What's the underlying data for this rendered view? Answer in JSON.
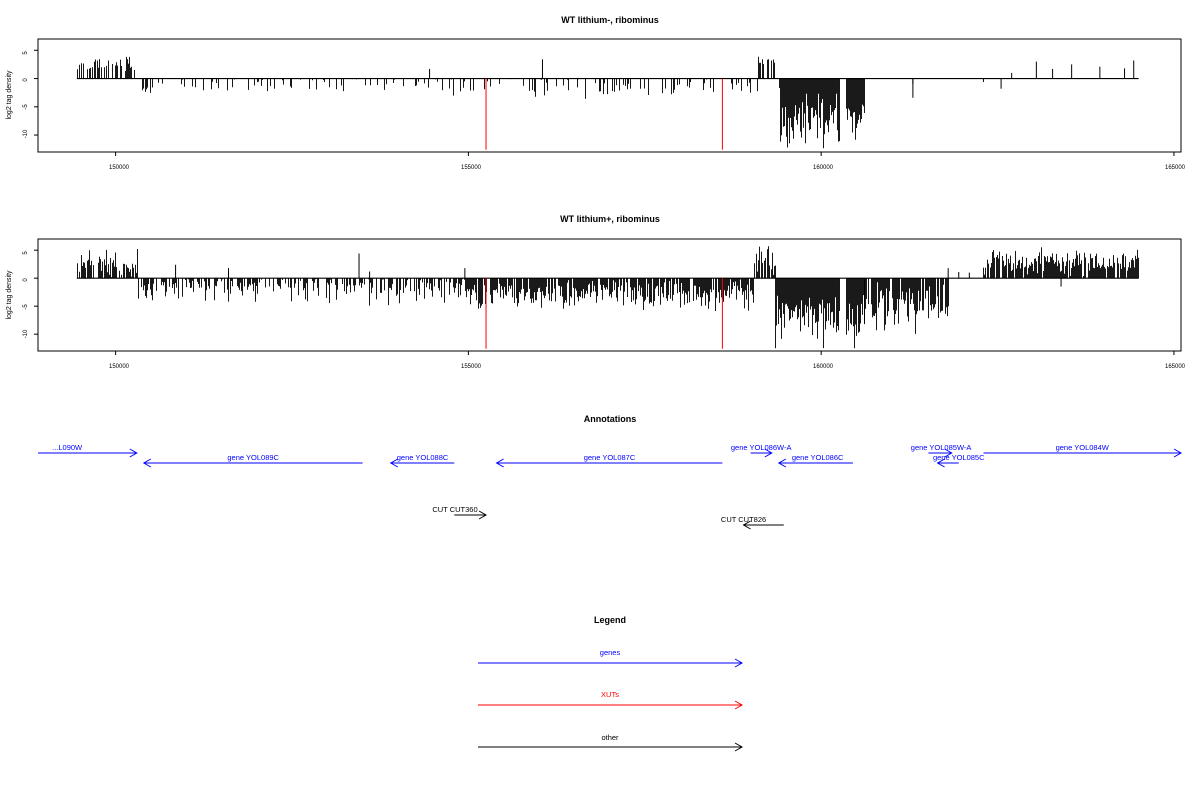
{
  "colors": {
    "genes": "#0000ff",
    "xuts": "#ff0000",
    "other": "#000000",
    "bars": "#000000"
  },
  "chart_data": [
    {
      "type": "bar",
      "title": "WT lithium-, ribominus",
      "ylabel": "log2 tag density",
      "xlim": [
        148900,
        165100
      ],
      "ylim": [
        -13,
        7
      ],
      "xticks": [
        "150000",
        "155000",
        "160000",
        "165000"
      ],
      "yticks": [
        "5",
        "0",
        "-5",
        "-10"
      ],
      "data_range": [
        149450,
        164500
      ],
      "xut_markers": [
        {
          "x": 155250,
          "value": -12.6
        },
        {
          "x": 158600,
          "value": -12.6
        }
      ],
      "density_regions": [
        {
          "from": 149450,
          "to": 150300,
          "mean": 2.2,
          "spread": 0.9,
          "density": 0.55
        },
        {
          "from": 150300,
          "to": 159100,
          "mean": -1.2,
          "spread": 1.0,
          "density": 0.25
        },
        {
          "from": 159100,
          "to": 159350,
          "mean": 3.0,
          "spread": 0.9,
          "density": 0.6
        },
        {
          "from": 159400,
          "to": 160250,
          "mean": -7.5,
          "spread": 2.5,
          "density": 1.0
        },
        {
          "from": 160350,
          "to": 160600,
          "mean": -7.5,
          "spread": 2.2,
          "density": 1.0
        },
        {
          "from": 160600,
          "to": 164500,
          "mean": 0.0,
          "spread": 0.0,
          "density": 0.0
        }
      ],
      "spikes": [
        {
          "x": 154450,
          "value": 1.7
        },
        {
          "x": 156050,
          "value": 3.4
        },
        {
          "x": 162700,
          "value": 1.0
        },
        {
          "x": 162550,
          "value": -1.8
        },
        {
          "x": 162300,
          "value": -0.6
        },
        {
          "x": 163050,
          "value": 3.0
        },
        {
          "x": 163280,
          "value": 1.7
        },
        {
          "x": 163550,
          "value": 2.5
        },
        {
          "x": 163950,
          "value": 2.1
        },
        {
          "x": 164300,
          "value": 1.8
        },
        {
          "x": 164430,
          "value": 3.2
        },
        {
          "x": 161300,
          "value": -3.4
        },
        {
          "x": 161300,
          "value": -1.0
        }
      ]
    },
    {
      "type": "bar",
      "title": "WT lithium+, ribominus",
      "ylabel": "log2 tag density",
      "xlim": [
        148900,
        165100
      ],
      "ylim": [
        -13,
        7
      ],
      "xticks": [
        "150000",
        "155000",
        "160000",
        "165000"
      ],
      "yticks": [
        "5",
        "0",
        "-5",
        "-10"
      ],
      "data_range": [
        149450,
        164500
      ],
      "xut_markers": [
        {
          "x": 155250,
          "value": -12.6
        },
        {
          "x": 158600,
          "value": -12.6
        }
      ],
      "density_regions": [
        {
          "from": 149450,
          "to": 150300,
          "mean": 2.6,
          "spread": 1.2,
          "density": 0.75
        },
        {
          "from": 150300,
          "to": 155000,
          "mean": -1.8,
          "spread": 1.3,
          "density": 0.6
        },
        {
          "from": 155000,
          "to": 159050,
          "mean": -2.8,
          "spread": 1.4,
          "density": 0.85
        },
        {
          "from": 159050,
          "to": 159350,
          "mean": 3.5,
          "spread": 1.5,
          "density": 0.8
        },
        {
          "from": 159350,
          "to": 160250,
          "mean": -7.2,
          "spread": 2.5,
          "density": 1.0
        },
        {
          "from": 160350,
          "to": 160600,
          "mean": -7.5,
          "spread": 2.5,
          "density": 1.0
        },
        {
          "from": 160600,
          "to": 161800,
          "mean": -5.0,
          "spread": 2.0,
          "density": 0.9
        },
        {
          "from": 162300,
          "to": 164500,
          "mean": 3.0,
          "spread": 1.1,
          "density": 0.9
        }
      ],
      "spikes": [
        {
          "x": 150850,
          "value": 2.4
        },
        {
          "x": 151600,
          "value": 1.8
        },
        {
          "x": 153450,
          "value": 4.4
        },
        {
          "x": 153600,
          "value": 1.2
        },
        {
          "x": 154950,
          "value": 1.8
        },
        {
          "x": 161800,
          "value": 1.8
        },
        {
          "x": 161950,
          "value": 1.1
        },
        {
          "x": 162100,
          "value": 1.0
        },
        {
          "x": 163400,
          "value": -1.5
        }
      ]
    }
  ],
  "annotations": {
    "title": "Annotations",
    "genes": [
      {
        "label": "...L090W",
        "x_start": 148900,
        "x_end": 150300,
        "dir": "right",
        "row": 0,
        "label_x": 149100,
        "label_align": "start"
      },
      {
        "label": "gene YOL089C",
        "x_start": 150400,
        "x_end": 153500,
        "dir": "left",
        "row": 1,
        "label_x": 151950,
        "label_align": "middle"
      },
      {
        "label": "gene YOL088C",
        "x_start": 153900,
        "x_end": 154800,
        "dir": "left",
        "row": 1,
        "label_x": 154350,
        "label_align": "middle"
      },
      {
        "label": "gene YOL087C",
        "x_start": 155400,
        "x_end": 158600,
        "dir": "left",
        "row": 1,
        "label_x": 157000,
        "label_align": "middle"
      },
      {
        "label": "gene YOL086W-A",
        "x_start": 159000,
        "x_end": 159300,
        "dir": "right",
        "row": 0,
        "label_x": 159150,
        "label_align": "middle"
      },
      {
        "label": "gene YOL086C",
        "x_start": 159400,
        "x_end": 160450,
        "dir": "left",
        "row": 1,
        "label_x": 159950,
        "label_align": "middle"
      },
      {
        "label": "gene YOL085W-A",
        "x_start": 161520,
        "x_end": 161850,
        "dir": "right",
        "row": 0,
        "label_x": 161700,
        "label_align": "middle"
      },
      {
        "label": "gene YOL085C",
        "x_start": 161650,
        "x_end": 161950,
        "dir": "left",
        "row": 1,
        "label_x": 161950,
        "label_align": "middle"
      },
      {
        "label": "gene YOL084W",
        "x_start": 162300,
        "x_end": 165100,
        "dir": "right",
        "row": 0,
        "label_x": 163700,
        "label_align": "middle"
      }
    ],
    "other": [
      {
        "label": "CUT CUT360",
        "x_start": 154800,
        "x_end": 155250,
        "dir": "right",
        "row": 2,
        "label_x": 154810,
        "label_align": "middle"
      },
      {
        "label": "CUT CUT826",
        "x_start": 158900,
        "x_end": 159470,
        "dir": "left",
        "row": 3,
        "label_x": 158900,
        "label_align": "middle"
      }
    ]
  },
  "legend": {
    "title": "Legend",
    "items": [
      {
        "label": "genes",
        "color": "#0000ff"
      },
      {
        "label": "XUTs",
        "color": "#ff0000"
      },
      {
        "label": "other",
        "color": "#000000"
      }
    ]
  }
}
